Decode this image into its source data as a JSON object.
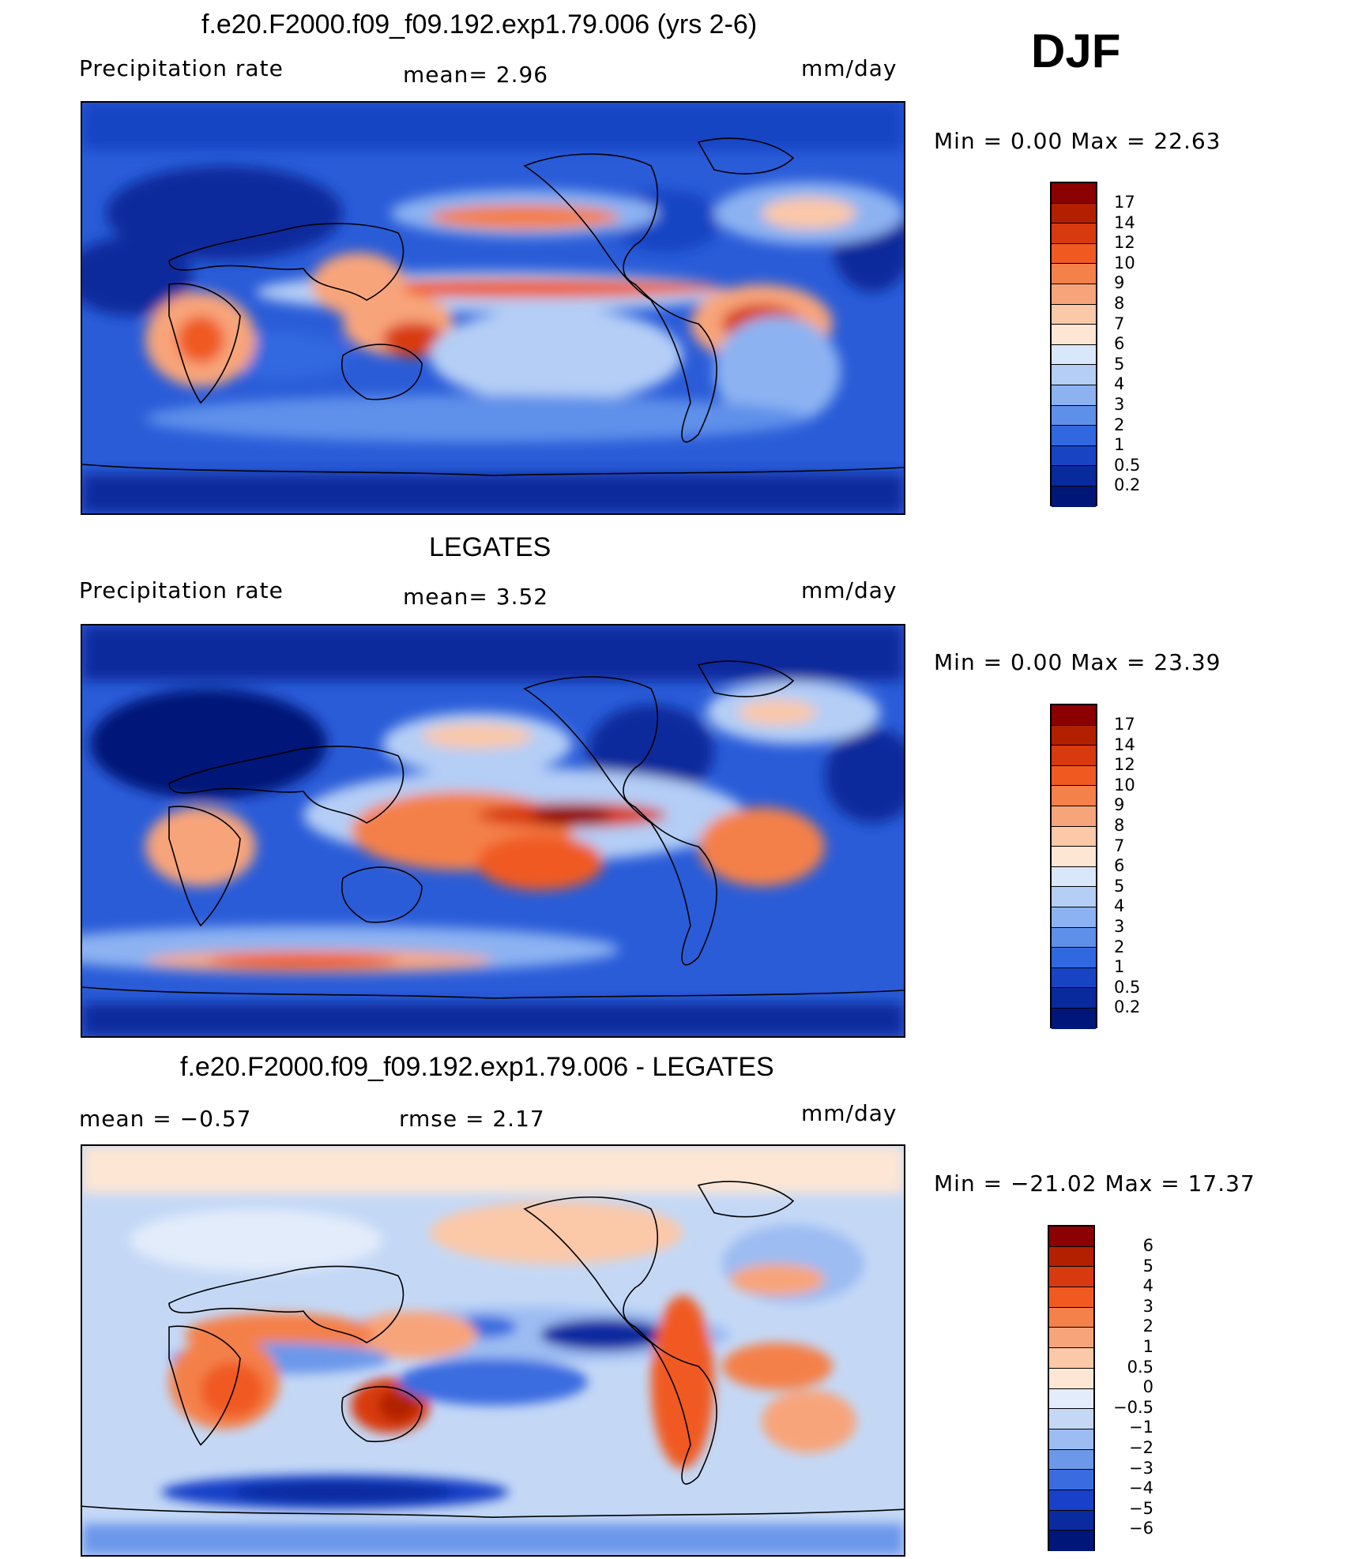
{
  "season": "DJF",
  "panels": [
    {
      "title": "f.e20.F2000.f09_f09.192.exp1.79.006 (yrs 2-6)",
      "left": "Precipitation  rate",
      "middle": "mean=     2.96",
      "units": "mm/day",
      "minmax": "Min  =      0.00  Max  =     22.63",
      "levels": [
        "17",
        "14",
        "12",
        "10",
        "9",
        "8",
        "7",
        "6",
        "5",
        "4",
        "3",
        "2",
        "1",
        "0.5",
        "0.2"
      ],
      "colors": [
        "#8b0000",
        "#b22000",
        "#d83a10",
        "#f05a20",
        "#f4804a",
        "#f8a47a",
        "#fbc8a8",
        "#fde6d4",
        "#d8e8fa",
        "#b4cef6",
        "#8cb2f2",
        "#5e90ea",
        "#3068e0",
        "#1844c4",
        "#082a9c",
        "#001678"
      ]
    },
    {
      "title": "LEGATES",
      "left": "Precipitation  rate",
      "middle": "mean=     3.52",
      "units": "mm/day",
      "minmax": "Min  =      0.00  Max  =     23.39",
      "levels": [
        "17",
        "14",
        "12",
        "10",
        "9",
        "8",
        "7",
        "6",
        "5",
        "4",
        "3",
        "2",
        "1",
        "0.5",
        "0.2"
      ],
      "colors": [
        "#8b0000",
        "#b22000",
        "#d83a10",
        "#f05a20",
        "#f4804a",
        "#f8a47a",
        "#fbc8a8",
        "#fde6d4",
        "#d8e8fa",
        "#b4cef6",
        "#8cb2f2",
        "#5e90ea",
        "#3068e0",
        "#1844c4",
        "#082a9c",
        "#001678"
      ]
    },
    {
      "title": "f.e20.F2000.f09_f09.192.exp1.79.006 - LEGATES",
      "left": "mean  =    −0.57",
      "middle": "rmse  =     2.17",
      "units": "mm/day",
      "minmax": "Min  = −21.02  Max  =    17.37",
      "levels": [
        "6",
        "5",
        "4",
        "3",
        "2",
        "1",
        "0.5",
        "0",
        "−0.5",
        "−1",
        "−2",
        "−3",
        "−4",
        "−5",
        "−6"
      ],
      "colors": [
        "#8b0000",
        "#b22000",
        "#d83a10",
        "#f05a20",
        "#f4804a",
        "#f8a47a",
        "#fbc8a8",
        "#fde6d4",
        "#e2ecfa",
        "#c4d8f6",
        "#9cbcf2",
        "#6c98ea",
        "#3a6ce0",
        "#1840c8",
        "#0a2aa0",
        "#001678"
      ]
    }
  ]
}
